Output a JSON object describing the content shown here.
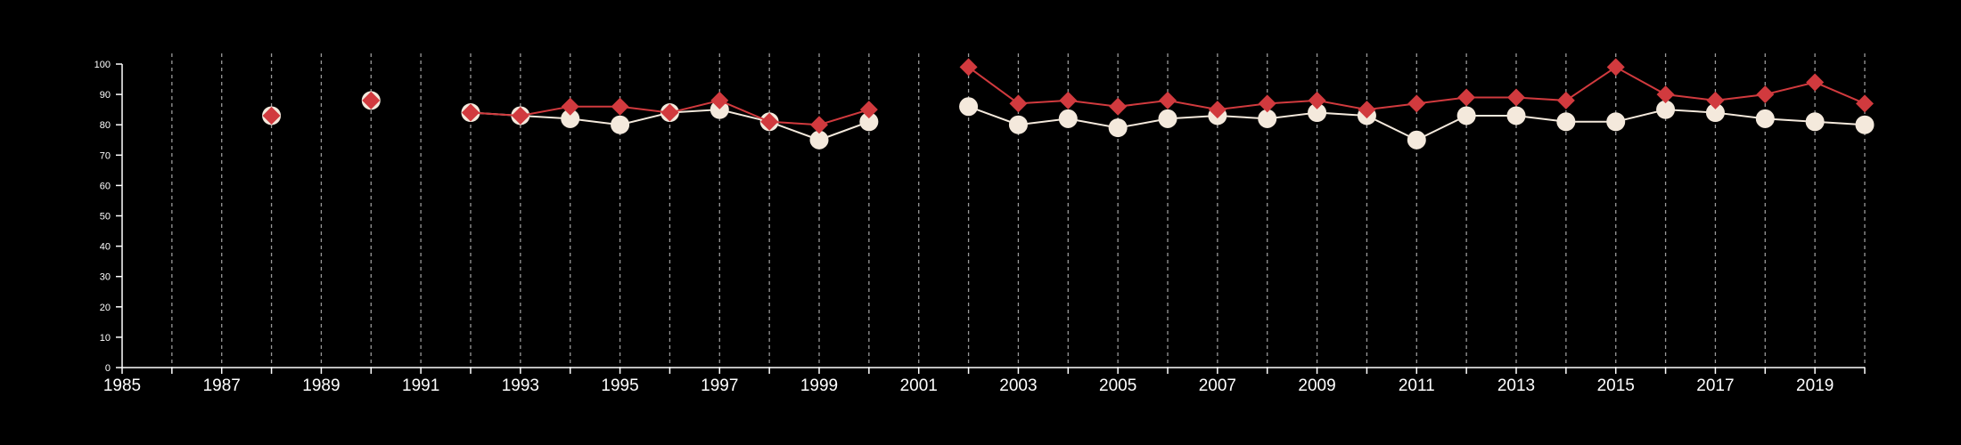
{
  "chart_data": {
    "type": "line",
    "title": "",
    "xlabel": "",
    "ylabel": "",
    "xlim": [
      1985,
      2020
    ],
    "ylim": [
      0,
      100
    ],
    "x_ticks": [
      1985,
      1987,
      1989,
      1991,
      1993,
      1995,
      1997,
      1999,
      2001,
      2003,
      2005,
      2007,
      2009,
      2011,
      2013,
      2015,
      2017,
      2019
    ],
    "y_ticks": [
      0,
      10,
      20,
      30,
      40,
      50,
      60,
      70,
      80,
      90,
      100
    ],
    "vertical_gridlines": [
      1986,
      1987,
      1988,
      1989,
      1990,
      1991,
      1992,
      1993,
      1994,
      1995,
      1996,
      1997,
      1998,
      1999,
      2000,
      2001,
      2002,
      2003,
      2004,
      2005,
      2006,
      2007,
      2008,
      2009,
      2010,
      2011,
      2012,
      2013,
      2014,
      2015,
      2016,
      2017,
      2018,
      2019,
      2020
    ],
    "grid": "vertical dashed",
    "legend": "none",
    "series": [
      {
        "color": "#f4e9dc",
        "marker": "circle",
        "x": [
          1988,
          1990,
          1992,
          1993,
          1994,
          1995,
          1996,
          1997,
          1998,
          1999,
          2000,
          2002,
          2003,
          2004,
          2005,
          2006,
          2007,
          2008,
          2009,
          2010,
          2011,
          2012,
          2013,
          2014,
          2015,
          2016,
          2017,
          2018,
          2019,
          2020
        ],
        "values": [
          83,
          88,
          84,
          83,
          82,
          80,
          84,
          85,
          81,
          75,
          81,
          86,
          80,
          82,
          79,
          82,
          83,
          82,
          84,
          83,
          75,
          83,
          83,
          81,
          81,
          85,
          84,
          82,
          81,
          80
        ]
      },
      {
        "color": "#d13a3e",
        "marker": "diamond",
        "x": [
          1988,
          1990,
          1992,
          1993,
          1994,
          1995,
          1996,
          1997,
          1998,
          1999,
          2000,
          2002,
          2003,
          2004,
          2005,
          2006,
          2007,
          2008,
          2009,
          2010,
          2011,
          2012,
          2013,
          2014,
          2015,
          2016,
          2017,
          2018,
          2019,
          2020
        ],
        "values": [
          83,
          88,
          84,
          83,
          86,
          86,
          84,
          88,
          81,
          80,
          85,
          99,
          87,
          88,
          86,
          88,
          85,
          87,
          88,
          85,
          87,
          89,
          89,
          88,
          99,
          90,
          88,
          90,
          94,
          87
        ]
      }
    ]
  }
}
